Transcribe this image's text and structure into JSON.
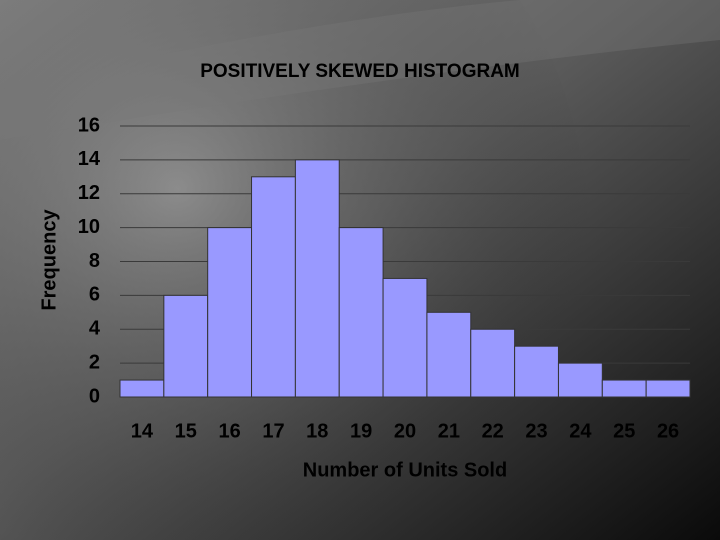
{
  "chart_data": {
    "type": "bar",
    "title": "POSITIVELY SKEWED HISTOGRAM",
    "x_label": "Number of Units Sold",
    "y_label": "Frequency",
    "categories": [
      "14",
      "15",
      "16",
      "17",
      "18",
      "19",
      "20",
      "21",
      "22",
      "23",
      "24",
      "25",
      "26"
    ],
    "values": [
      1,
      6,
      10,
      13,
      14,
      10,
      7,
      5,
      4,
      3,
      2,
      1,
      1
    ],
    "color": "#9999ff",
    "ylim": [
      0,
      16
    ],
    "yticks": [
      0,
      2,
      4,
      6,
      8,
      10,
      12,
      14,
      16
    ],
    "grid": true
  }
}
